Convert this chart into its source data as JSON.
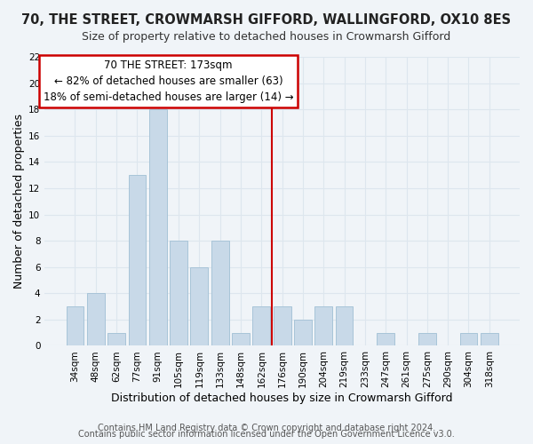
{
  "title1": "70, THE STREET, CROWMARSH GIFFORD, WALLINGFORD, OX10 8ES",
  "title2": "Size of property relative to detached houses in Crowmarsh Gifford",
  "xlabel": "Distribution of detached houses by size in Crowmarsh Gifford",
  "ylabel": "Number of detached properties",
  "categories": [
    "34sqm",
    "48sqm",
    "62sqm",
    "77sqm",
    "91sqm",
    "105sqm",
    "119sqm",
    "133sqm",
    "148sqm",
    "162sqm",
    "176sqm",
    "190sqm",
    "204sqm",
    "219sqm",
    "233sqm",
    "247sqm",
    "261sqm",
    "275sqm",
    "290sqm",
    "304sqm",
    "318sqm"
  ],
  "values": [
    3,
    4,
    1,
    13,
    18,
    8,
    6,
    8,
    1,
    3,
    3,
    2,
    3,
    3,
    0,
    1,
    0,
    1,
    0,
    1,
    1
  ],
  "bar_color": "#c8d9e8",
  "bar_edge_color": "#a8c4d8",
  "annotation_title": "70 THE STREET: 173sqm",
  "annotation_line1": "← 82% of detached houses are smaller (63)",
  "annotation_line2": "18% of semi-detached houses are larger (14) →",
  "annotation_box_color": "#ffffff",
  "annotation_box_edge": "#cc0000",
  "vline_color": "#cc0000",
  "ylim": [
    0,
    22
  ],
  "footer1": "Contains HM Land Registry data © Crown copyright and database right 2024.",
  "footer2": "Contains public sector information licensed under the Open Government Licence v3.0.",
  "grid_color": "#dde6ee",
  "background_color": "#f0f4f8",
  "title1_fontsize": 10.5,
  "title2_fontsize": 9,
  "ylabel_fontsize": 9,
  "xlabel_fontsize": 9,
  "tick_fontsize": 7.5,
  "footer_fontsize": 7,
  "ann_fontsize": 8.5
}
